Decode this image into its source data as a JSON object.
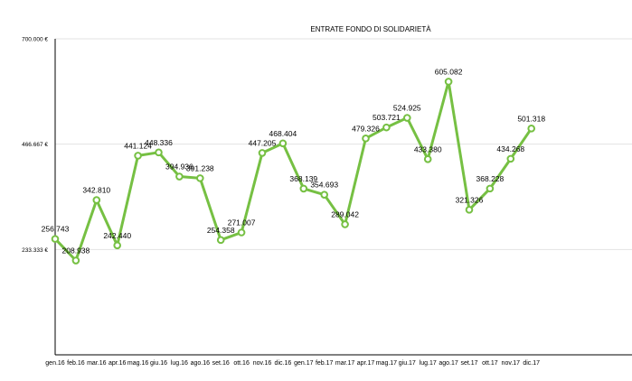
{
  "colors": {
    "series": "#76c043",
    "grid": "#e3e3e3",
    "axis": "#000000"
  },
  "chart_data": {
    "type": "line",
    "title": "ENTRATE FONDO DI SOLIDARIETÀ",
    "xlabel": "",
    "ylabel": "",
    "ylim": [
      0,
      700000
    ],
    "yticks": [
      233333,
      466667,
      700000
    ],
    "ytick_labels": [
      "233.333 €",
      "466.667 €",
      "700.000 €"
    ],
    "grid": true,
    "legend": "none",
    "categories": [
      "gen.16",
      "feb.16",
      "mar.16",
      "apr.16",
      "mag.16",
      "giu.16",
      "lug.16",
      "ago.16",
      "set.16",
      "ott.16",
      "nov.16",
      "dic.16",
      "gen.17",
      "feb.17",
      "mar.17",
      "apr.17",
      "mag.17",
      "giu.17",
      "lug.17",
      "ago.17",
      "set.17",
      "ott.17",
      "nov.17",
      "dic.17"
    ],
    "series": [
      {
        "name": "Entrate fondo di solidarietà",
        "values": [
          256743,
          208938,
          342810,
          242440,
          441124,
          448336,
          394936,
          391238,
          254358,
          271007,
          447205,
          468404,
          368139,
          354693,
          289042,
          479326,
          503721,
          524925,
          433380,
          605082,
          321326,
          368228,
          434268,
          501318
        ],
        "labels": [
          "256.743",
          "208.938",
          "342.810",
          "242.440",
          "441.124",
          "448.336",
          "394.936",
          "391.238",
          "254.358",
          "271.007",
          "447.205",
          "468.404",
          "368.139",
          "354.693",
          "289.042",
          "479.326",
          "503.721",
          "524.925",
          "433.380",
          "605.082",
          "321.326",
          "368.228",
          "434.268",
          "501.318"
        ]
      }
    ]
  }
}
